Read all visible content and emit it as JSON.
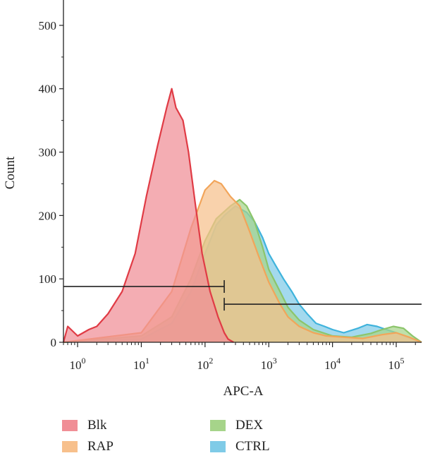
{
  "chart_data": {
    "type": "area",
    "xlabel": "APC-A",
    "ylabel": "Count",
    "x_scale": "log",
    "xlim": [
      0.6,
      250000
    ],
    "ylim": [
      0,
      540
    ],
    "y_ticks": [
      0,
      100,
      200,
      300,
      400,
      500
    ],
    "x_ticks": [
      {
        "value": 1,
        "base": "10",
        "exp": "0"
      },
      {
        "value": 10,
        "base": "10",
        "exp": "1"
      },
      {
        "value": 100,
        "base": "10",
        "exp": "2"
      },
      {
        "value": 1000,
        "base": "10",
        "exp": "3"
      },
      {
        "value": 10000,
        "base": "10",
        "exp": "4"
      },
      {
        "value": 100000,
        "base": "10",
        "exp": "5"
      }
    ],
    "legend_placement": "bottom",
    "series": [
      {
        "name": "CTRL",
        "fill": "#7fcbe7",
        "stroke": "#3fb3dc",
        "x": [
          0.6,
          10,
          30,
          60,
          100,
          150,
          200,
          300,
          450,
          600,
          800,
          1000,
          1300,
          1700,
          2300,
          3000,
          4000,
          5500,
          7500,
          10000,
          15000,
          25000,
          35000,
          50000,
          70000,
          100000,
          150000,
          200000,
          250000
        ],
        "y": [
          0,
          5,
          30,
          80,
          140,
          185,
          200,
          215,
          205,
          190,
          165,
          140,
          120,
          100,
          80,
          60,
          45,
          30,
          25,
          20,
          15,
          22,
          28,
          25,
          20,
          15,
          8,
          3,
          0
        ]
      },
      {
        "name": "DEX",
        "fill": "#a6d48a",
        "stroke": "#8cc56b",
        "x": [
          0.6,
          10,
          30,
          60,
          100,
          150,
          250,
          350,
          450,
          600,
          800,
          1000,
          1500,
          2000,
          3000,
          5000,
          10000,
          20000,
          40000,
          60000,
          90000,
          130000,
          180000,
          250000
        ],
        "y": [
          0,
          10,
          40,
          100,
          160,
          195,
          215,
          225,
          215,
          190,
          150,
          115,
          80,
          55,
          35,
          20,
          10,
          8,
          14,
          20,
          25,
          22,
          10,
          0
        ]
      },
      {
        "name": "RAP",
        "fill": "#f7c08c",
        "stroke": "#f2a55a",
        "x": [
          0.6,
          10,
          30,
          60,
          100,
          140,
          180,
          250,
          350,
          500,
          700,
          1000,
          1500,
          2000,
          3000,
          5000,
          8000,
          15000,
          30000,
          60000,
          100000,
          160000,
          250000
        ],
        "y": [
          0,
          15,
          80,
          180,
          240,
          255,
          250,
          230,
          215,
          175,
          135,
          95,
          60,
          40,
          25,
          15,
          10,
          8,
          6,
          12,
          15,
          8,
          0
        ]
      },
      {
        "name": "Blk",
        "fill": "#f08e96",
        "stroke": "#e03b45",
        "x": [
          0.6,
          0.7,
          1,
          1.5,
          2,
          3,
          5,
          8,
          12,
          18,
          25,
          30,
          35,
          45,
          55,
          70,
          90,
          120,
          160,
          200,
          230,
          280
        ],
        "y": [
          0,
          25,
          10,
          20,
          25,
          45,
          80,
          140,
          230,
          310,
          370,
          400,
          370,
          350,
          300,
          220,
          140,
          80,
          40,
          15,
          5,
          0
        ]
      }
    ],
    "gates": [
      {
        "label_text": "",
        "x1": 0.6,
        "x2": 200,
        "y": 88
      },
      {
        "label_text": "",
        "x1": 200,
        "x2": 250000,
        "y": 60
      }
    ]
  },
  "legend": [
    {
      "name": "Blk",
      "color": "#f08e96"
    },
    {
      "name": "RAP",
      "color": "#f7c08c"
    },
    {
      "name": "DEX",
      "color": "#a6d48a"
    },
    {
      "name": "CTRL",
      "color": "#7fcbe7"
    }
  ]
}
